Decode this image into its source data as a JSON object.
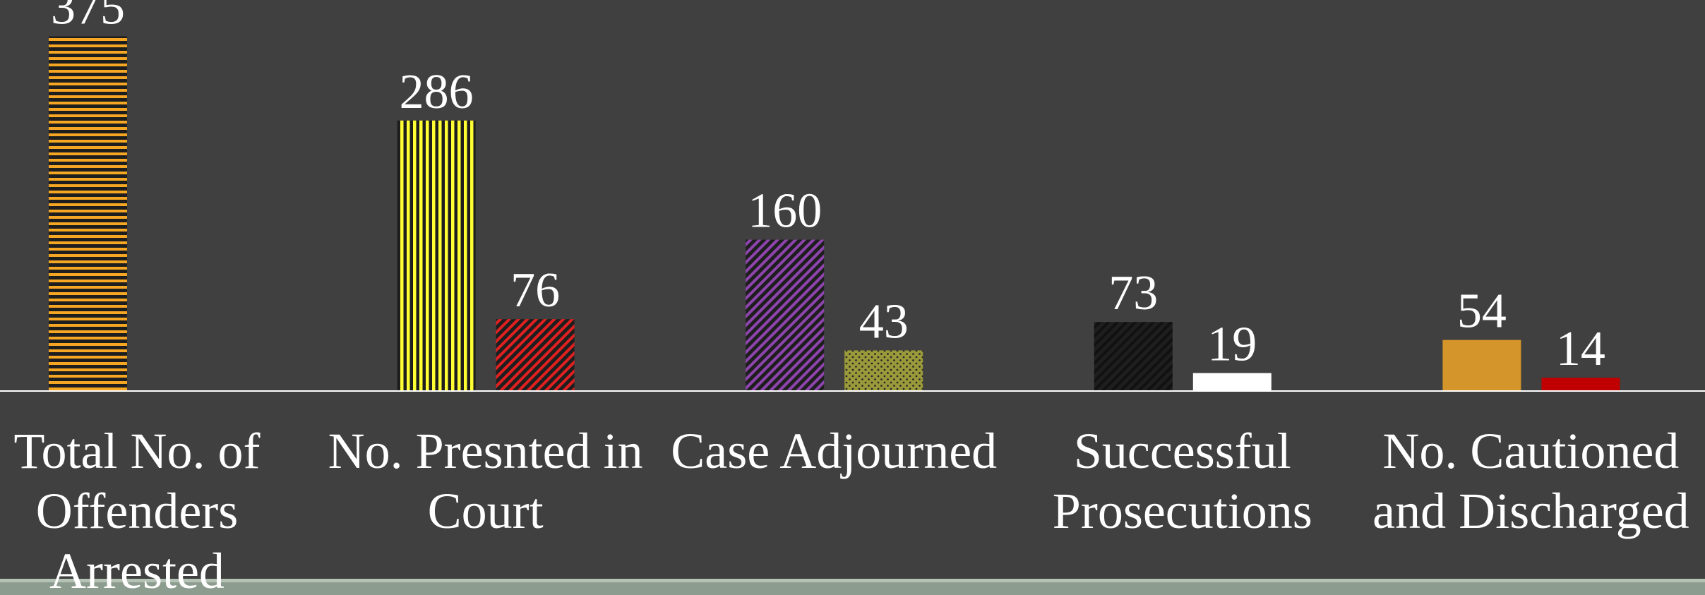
{
  "chart_data": {
    "type": "bar",
    "categories": [
      [
        "Total No. of",
        "Offenders",
        "Arrested"
      ],
      [
        "No. Presnted in",
        "Court"
      ],
      [
        "Case Adjourned"
      ],
      [
        "Successful",
        "Prosecutions"
      ],
      [
        "No. Cautioned",
        "and Discharged"
      ]
    ],
    "series": [
      {
        "values": [
          375,
          286,
          160,
          73,
          54
        ],
        "colors": [
          "#f5a623",
          "#ffff33",
          "#8e44ad",
          "#111111",
          "#d4952a"
        ],
        "patterns": [
          "horizontal",
          "vertical",
          "diagonal",
          "diagonal",
          "solid"
        ]
      },
      {
        "values": [
          null,
          76,
          43,
          19,
          14
        ],
        "colors": [
          null,
          "#e02020",
          "#9a9a3a",
          "#ffffff",
          "#c00000"
        ],
        "patterns": [
          null,
          "diagonal",
          "dots",
          "solid",
          "solid"
        ]
      }
    ],
    "ylim": [
      0,
      400
    ]
  }
}
